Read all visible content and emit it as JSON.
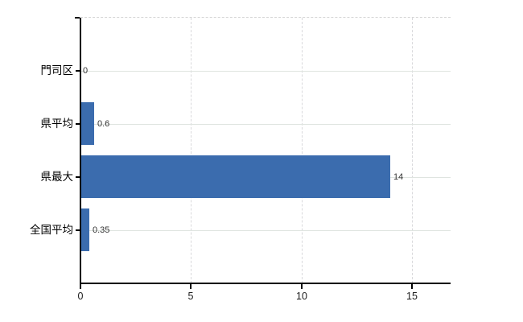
{
  "chart_data": {
    "type": "bar",
    "orientation": "horizontal",
    "title": "",
    "categories": [
      "門司区",
      "県平均",
      "県最大",
      "全国平均"
    ],
    "values": [
      0,
      0.6,
      14,
      0.35
    ],
    "value_labels": [
      "0",
      "0.6",
      "14",
      "0.35"
    ],
    "x_ticks": [
      0,
      5,
      10,
      15
    ],
    "x_tick_labels": [
      "0",
      "5",
      "10",
      "15"
    ],
    "xlim": [
      0,
      16.75
    ],
    "grid": true,
    "legend": false,
    "colors": {
      "bar": "#3b6cae",
      "grid_horizontal": "#dfe4e0",
      "grid_vertical": "#d9d9dc",
      "top_border": "#d4d4d4",
      "axis": "#000000",
      "value_label_text": "#333333",
      "category_label_text": "#000000",
      "tick_label_text": "#1a1a1a",
      "background": "#ffffff"
    }
  }
}
